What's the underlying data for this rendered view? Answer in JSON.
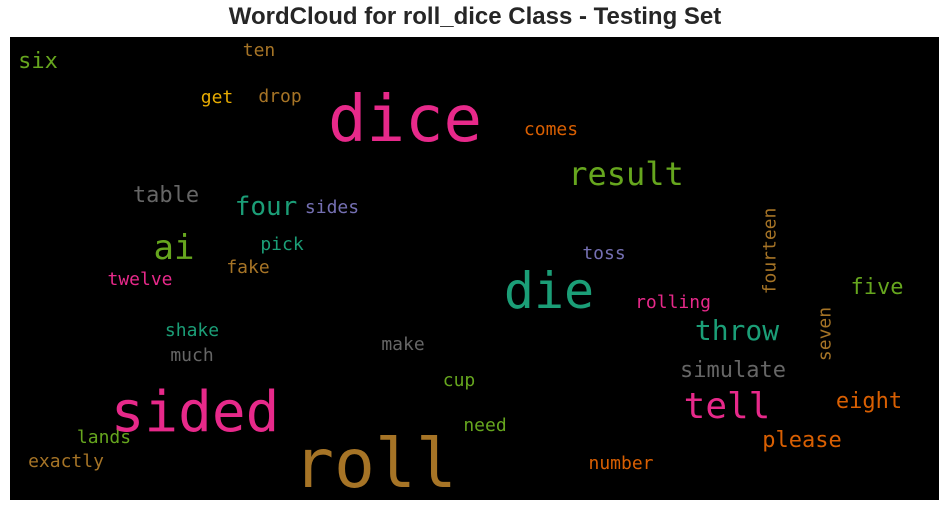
{
  "chart_data": {
    "type": "wordcloud",
    "title": "WordCloud for roll_dice Class - Testing Set",
    "background": "#000000",
    "words": [
      {
        "text": "roll",
        "color": "#a67426",
        "orientation": "horizontal"
      },
      {
        "text": "dice",
        "color": "#e7298a",
        "orientation": "horizontal"
      },
      {
        "text": "sided",
        "color": "#e7298a",
        "orientation": "horizontal"
      },
      {
        "text": "die",
        "color": "#1b9e77",
        "orientation": "horizontal"
      },
      {
        "text": "tell",
        "color": "#e7298a",
        "orientation": "horizontal"
      },
      {
        "text": "result",
        "color": "#66a61e",
        "orientation": "horizontal"
      },
      {
        "text": "ai",
        "color": "#66a61e",
        "orientation": "horizontal"
      },
      {
        "text": "throw",
        "color": "#1b9e77",
        "orientation": "horizontal"
      },
      {
        "text": "four",
        "color": "#1b9e77",
        "orientation": "horizontal"
      },
      {
        "text": "simulate",
        "color": "#666666",
        "orientation": "horizontal"
      },
      {
        "text": "table",
        "color": "#666666",
        "orientation": "horizontal"
      },
      {
        "text": "please",
        "color": "#d95f02",
        "orientation": "horizontal"
      },
      {
        "text": "eight",
        "color": "#d95f02",
        "orientation": "horizontal"
      },
      {
        "text": "five",
        "color": "#66a61e",
        "orientation": "horizontal"
      },
      {
        "text": "six",
        "color": "#66a61e",
        "orientation": "horizontal"
      },
      {
        "text": "fourteen",
        "color": "#a67426",
        "orientation": "vertical"
      },
      {
        "text": "seven",
        "color": "#a67426",
        "orientation": "vertical"
      },
      {
        "text": "rolling",
        "color": "#e7298a",
        "orientation": "horizontal"
      },
      {
        "text": "comes",
        "color": "#d95f02",
        "orientation": "horizontal"
      },
      {
        "text": "twelve",
        "color": "#e7298a",
        "orientation": "horizontal"
      },
      {
        "text": "toss",
        "color": "#7570b3",
        "orientation": "horizontal"
      },
      {
        "text": "sides",
        "color": "#7570b3",
        "orientation": "horizontal"
      },
      {
        "text": "number",
        "color": "#d95f02",
        "orientation": "horizontal"
      },
      {
        "text": "exactly",
        "color": "#a67426",
        "orientation": "horizontal"
      },
      {
        "text": "drop",
        "color": "#a67426",
        "orientation": "horizontal"
      },
      {
        "text": "pick",
        "color": "#1b9e77",
        "orientation": "horizontal"
      },
      {
        "text": "fake",
        "color": "#a67426",
        "orientation": "horizontal"
      },
      {
        "text": "shake",
        "color": "#1b9e77",
        "orientation": "horizontal"
      },
      {
        "text": "much",
        "color": "#666666",
        "orientation": "horizontal"
      },
      {
        "text": "make",
        "color": "#666666",
        "orientation": "horizontal"
      },
      {
        "text": "cup",
        "color": "#66a61e",
        "orientation": "horizontal"
      },
      {
        "text": "need",
        "color": "#66a61e",
        "orientation": "horizontal"
      },
      {
        "text": "lands",
        "color": "#66a61e",
        "orientation": "horizontal"
      },
      {
        "text": "get",
        "color": "#e6ab02",
        "orientation": "horizontal"
      },
      {
        "text": "ten",
        "color": "#a67426",
        "orientation": "horizontal"
      }
    ]
  }
}
